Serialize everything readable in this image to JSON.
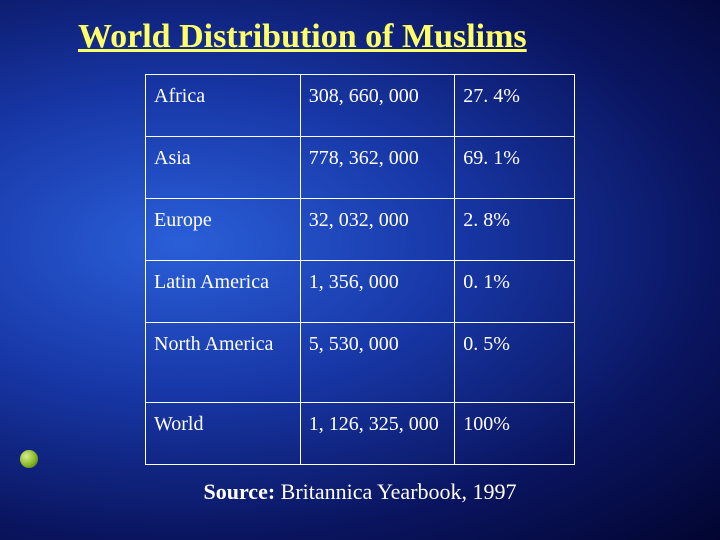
{
  "title": "World Distribution of Muslims",
  "table": {
    "columns": [
      "region",
      "population",
      "percent"
    ],
    "rows": [
      {
        "region": "Africa",
        "population": "308, 660, 000",
        "percent": "27. 4%"
      },
      {
        "region": "Asia",
        "population": "778, 362, 000",
        "percent": "69. 1%"
      },
      {
        "region": "Europe",
        "population": "32, 032, 000",
        "percent": "2. 8%"
      },
      {
        "region": "Latin America",
        "population": "1, 356, 000",
        "percent": "0. 1%"
      },
      {
        "region": "North America",
        "population": "5, 530, 000",
        "percent": "0. 5%"
      },
      {
        "region": "World",
        "population": "1, 126, 325, 000",
        "percent": "100%"
      }
    ],
    "cell_color": "#ffffff",
    "border_color": "#ffffff",
    "fontsize": 20
  },
  "source": {
    "label": "Source:",
    "text": "  Britannica Yearbook, 1997"
  },
  "style": {
    "title_color": "#ffff66",
    "title_fontsize": 34,
    "background_gradient": {
      "inner": "#2a5fd8",
      "mid": "#1838a8",
      "outer": "#020530"
    },
    "bullet_color": "#8ab828"
  }
}
